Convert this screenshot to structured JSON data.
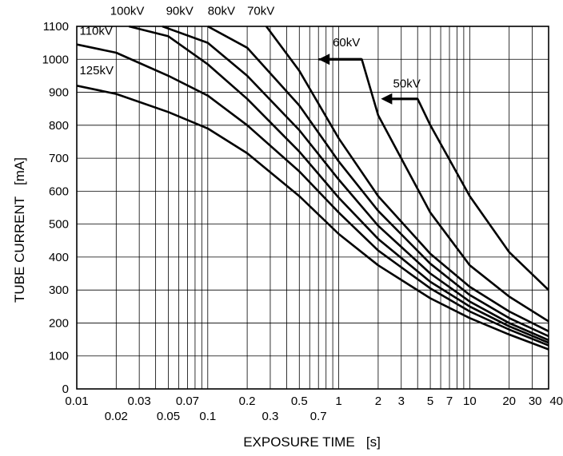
{
  "chart_data": {
    "type": "line",
    "xlabel": "EXPOSURE TIME   [s]",
    "ylabel": "TUBE CURRENT   [mA]",
    "x_scale": "log",
    "xlim": [
      0.01,
      40
    ],
    "ylim": [
      0,
      1100
    ],
    "grid": true,
    "x_ticks": [
      0.01,
      0.02,
      0.03,
      0.05,
      0.07,
      0.1,
      0.2,
      0.3,
      0.5,
      0.7,
      1,
      2,
      3,
      5,
      7,
      10,
      20,
      30,
      40
    ],
    "x_tick_labels": [
      "0.01",
      "0.02",
      "0.03",
      "0.05",
      "0.07",
      "0.1",
      "0.2",
      "0.3",
      "0.5",
      "0.7",
      "1",
      "2",
      "3",
      "5",
      "7",
      "10",
      "20",
      "30",
      "40"
    ],
    "y_ticks": [
      0,
      100,
      200,
      300,
      400,
      500,
      600,
      700,
      800,
      900,
      1000,
      1100
    ],
    "y_tick_labels": [
      "0",
      "100",
      "200",
      "300",
      "400",
      "500",
      "600",
      "700",
      "800",
      "900",
      "1000",
      "1100"
    ],
    "series": [
      {
        "name": "125kV",
        "x": [
          0.01,
          0.02,
          0.05,
          0.1,
          0.2,
          0.5,
          1,
          2,
          5,
          10,
          20,
          40
        ],
        "y": [
          920,
          895,
          840,
          790,
          715,
          585,
          470,
          375,
          275,
          215,
          165,
          120
        ]
      },
      {
        "name": "110kV",
        "x": [
          0.01,
          0.02,
          0.05,
          0.1,
          0.2,
          0.5,
          1,
          2,
          5,
          10,
          20,
          40
        ],
        "y": [
          1045,
          1020,
          950,
          890,
          800,
          660,
          535,
          420,
          305,
          235,
          180,
          132
        ]
      },
      {
        "name": "100kV",
        "x": [
          0.025,
          0.05,
          0.1,
          0.2,
          0.5,
          1,
          2,
          5,
          10,
          20,
          40
        ],
        "y": [
          1100,
          1070,
          985,
          880,
          720,
          580,
          455,
          325,
          250,
          190,
          140
        ]
      },
      {
        "name": "90kV",
        "x": [
          0.045,
          0.1,
          0.2,
          0.5,
          1,
          2,
          5,
          10,
          20,
          40
        ],
        "y": [
          1100,
          1050,
          950,
          785,
          635,
          495,
          350,
          265,
          200,
          148
        ]
      },
      {
        "name": "80kV",
        "x": [
          0.1,
          0.2,
          0.5,
          1,
          2,
          5,
          10,
          20,
          40
        ],
        "y": [
          1100,
          1035,
          860,
          690,
          540,
          380,
          285,
          215,
          160
        ]
      },
      {
        "name": "70kV",
        "x": [
          0.28,
          0.5,
          1,
          2,
          5,
          10,
          20,
          40
        ],
        "y": [
          1100,
          965,
          760,
          585,
          410,
          310,
          235,
          175
        ]
      },
      {
        "name": "60kV",
        "x": [
          0.7,
          1.5,
          2,
          5,
          10,
          20,
          40
        ],
        "y": [
          1000,
          1000,
          830,
          535,
          375,
          280,
          205
        ]
      },
      {
        "name": "50kV",
        "x": [
          2.2,
          4,
          5,
          10,
          20,
          40
        ],
        "y": [
          880,
          880,
          800,
          585,
          415,
          300
        ]
      }
    ],
    "annotations": [
      {
        "text": "100kV",
        "x": 0.018,
        "y": 1135
      },
      {
        "text": "90kV",
        "x": 0.048,
        "y": 1135
      },
      {
        "text": "80kV",
        "x": 0.1,
        "y": 1135
      },
      {
        "text": "70kV",
        "x": 0.2,
        "y": 1135
      },
      {
        "text": "110kV",
        "x": 0.0105,
        "y": 1075
      },
      {
        "text": "125kV",
        "x": 0.0105,
        "y": 955
      },
      {
        "text": "60kV",
        "x": 0.9,
        "y": 1040
      },
      {
        "text": "50kV",
        "x": 2.6,
        "y": 915
      }
    ],
    "arrows": [
      {
        "series": "60kV",
        "from_x": 1.5,
        "to_x": 0.7,
        "y": 1000
      },
      {
        "series": "50kV",
        "from_x": 4,
        "to_x": 2.1,
        "y": 880
      }
    ]
  }
}
